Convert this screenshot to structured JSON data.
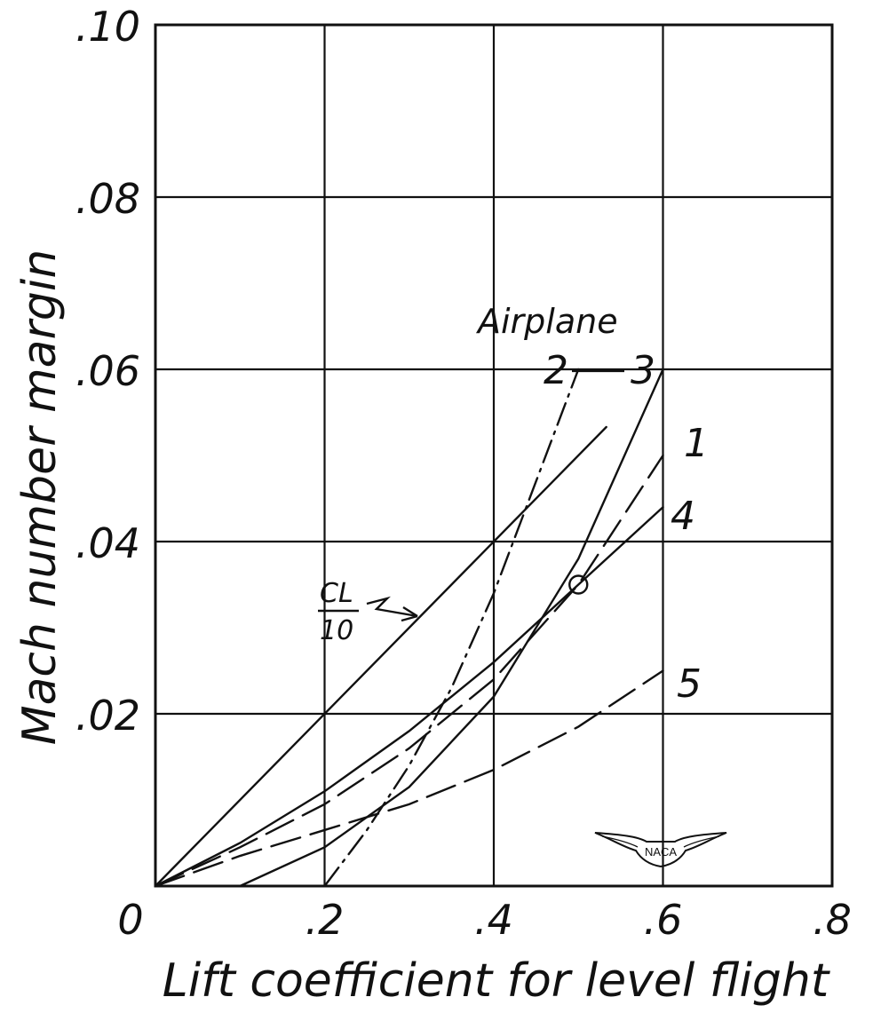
{
  "chart_data": {
    "type": "line",
    "xlabel": "Lift coefficient for level flight",
    "ylabel": "Mach number margin",
    "xlim": [
      0,
      0.8
    ],
    "ylim": [
      0,
      0.1
    ],
    "x_ticks": [
      {
        "value": 0,
        "label": "0"
      },
      {
        "value": 0.2,
        "label": ".2"
      },
      {
        "value": 0.4,
        "label": ".4"
      },
      {
        "value": 0.6,
        "label": ".6"
      },
      {
        "value": 0.8,
        "label": ".8"
      }
    ],
    "y_ticks": [
      {
        "value": 0.02,
        "label": ".02"
      },
      {
        "value": 0.04,
        "label": ".04"
      },
      {
        "value": 0.06,
        "label": ".06"
      },
      {
        "value": 0.08,
        "label": ".08"
      },
      {
        "value": 0.1,
        "label": ".10"
      }
    ],
    "grid": true,
    "legend_title": "Airplane",
    "series": [
      {
        "name": "1",
        "style": "long-dash",
        "x": [
          0,
          0.1,
          0.2,
          0.3,
          0.4,
          0.5,
          0.6
        ],
        "y": [
          0,
          0.0045,
          0.0095,
          0.016,
          0.024,
          0.035,
          0.05
        ]
      },
      {
        "name": "2",
        "style": "dash-dot",
        "x": [
          0.2,
          0.25,
          0.3,
          0.35,
          0.4,
          0.45,
          0.5
        ],
        "y": [
          0,
          0.0065,
          0.014,
          0.023,
          0.034,
          0.047,
          0.06
        ]
      },
      {
        "name": "3",
        "style": "solid",
        "x": [
          0.1,
          0.2,
          0.3,
          0.4,
          0.5,
          0.6
        ],
        "y": [
          0,
          0.0045,
          0.0115,
          0.022,
          0.038,
          0.06
        ]
      },
      {
        "name": "4",
        "style": "solid",
        "x": [
          0,
          0.1,
          0.2,
          0.3,
          0.4,
          0.5,
          0.6
        ],
        "y": [
          0,
          0.005,
          0.011,
          0.018,
          0.026,
          0.035,
          0.044
        ]
      },
      {
        "name": "5",
        "style": "long-dash",
        "x": [
          0,
          0.1,
          0.2,
          0.3,
          0.4,
          0.5,
          0.6
        ],
        "y": [
          0,
          0.0035,
          0.0065,
          0.0095,
          0.0135,
          0.0185,
          0.025
        ]
      }
    ],
    "reference_line": {
      "label_num": "CL",
      "label_den": "10",
      "x": [
        0,
        0.533
      ],
      "y": [
        0,
        0.0533
      ]
    },
    "marker": {
      "x": 0.5,
      "y": 0.035
    }
  },
  "logo": {
    "text": "NACA"
  }
}
